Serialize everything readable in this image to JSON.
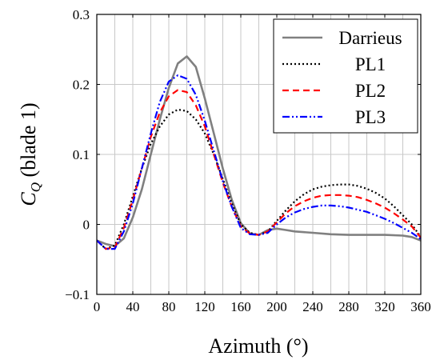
{
  "chart_data": {
    "type": "line",
    "xlabel": "Azimuth (°)",
    "ylabel_symbol": "C",
    "ylabel_subscript": "Q",
    "ylabel_suffix": " (blade 1)",
    "xlim": [
      0,
      360
    ],
    "ylim": [
      -0.1,
      0.3
    ],
    "x_ticks": [
      "0",
      "40",
      "80",
      "120",
      "160",
      "200",
      "240",
      "280",
      "320",
      "360"
    ],
    "x_tick_values": [
      0,
      40,
      80,
      120,
      160,
      200,
      240,
      280,
      320,
      360
    ],
    "x_minor_ticks": [
      20,
      60,
      100,
      140,
      180,
      220,
      260,
      300,
      340
    ],
    "y_ticks": [
      "−0.1",
      "0",
      "0.1",
      "0.2",
      "0.3"
    ],
    "y_tick_values": [
      -0.1,
      0,
      0.1,
      0.2,
      0.3
    ],
    "grid": true,
    "legend_position": "top-right",
    "series": [
      {
        "name": "Darrieus",
        "color": "#808080",
        "style": "solid",
        "x": [
          0,
          10,
          20,
          30,
          40,
          50,
          60,
          70,
          80,
          90,
          100,
          110,
          120,
          130,
          140,
          150,
          160,
          170,
          180,
          190,
          200,
          210,
          220,
          240,
          260,
          280,
          300,
          320,
          340,
          350,
          360
        ],
        "y": [
          -0.023,
          -0.028,
          -0.031,
          -0.02,
          0.01,
          0.05,
          0.1,
          0.15,
          0.195,
          0.23,
          0.24,
          0.225,
          0.18,
          0.13,
          0.08,
          0.035,
          0.002,
          -0.013,
          -0.015,
          -0.008,
          -0.006,
          -0.008,
          -0.01,
          -0.012,
          -0.014,
          -0.015,
          -0.015,
          -0.015,
          -0.016,
          -0.018,
          -0.023
        ]
      },
      {
        "name": "PL1",
        "color": "#000000",
        "style": "dotted",
        "x": [
          0,
          10,
          20,
          30,
          40,
          50,
          60,
          70,
          80,
          90,
          100,
          110,
          120,
          130,
          140,
          150,
          160,
          170,
          180,
          190,
          200,
          210,
          220,
          230,
          240,
          250,
          260,
          270,
          280,
          290,
          300,
          310,
          320,
          330,
          340,
          350,
          360
        ],
        "y": [
          -0.023,
          -0.035,
          -0.03,
          0.0,
          0.04,
          0.08,
          0.115,
          0.14,
          0.157,
          0.164,
          0.162,
          0.15,
          0.13,
          0.1,
          0.065,
          0.03,
          0.0,
          -0.012,
          -0.015,
          -0.01,
          0.005,
          0.02,
          0.033,
          0.043,
          0.05,
          0.054,
          0.056,
          0.057,
          0.057,
          0.055,
          0.051,
          0.045,
          0.037,
          0.026,
          0.013,
          0.0,
          -0.018
        ]
      },
      {
        "name": "PL2",
        "color": "#ff0000",
        "style": "dashed",
        "x": [
          0,
          10,
          20,
          30,
          40,
          50,
          60,
          70,
          80,
          90,
          100,
          110,
          120,
          130,
          140,
          150,
          160,
          170,
          180,
          190,
          200,
          210,
          220,
          230,
          240,
          250,
          260,
          270,
          280,
          290,
          300,
          310,
          320,
          330,
          340,
          350,
          360
        ],
        "y": [
          -0.023,
          -0.035,
          -0.033,
          -0.005,
          0.035,
          0.08,
          0.125,
          0.16,
          0.183,
          0.192,
          0.189,
          0.17,
          0.14,
          0.1,
          0.06,
          0.025,
          -0.003,
          -0.013,
          -0.015,
          -0.01,
          0.003,
          0.016,
          0.026,
          0.033,
          0.038,
          0.041,
          0.042,
          0.042,
          0.041,
          0.039,
          0.035,
          0.03,
          0.024,
          0.016,
          0.007,
          -0.003,
          -0.019
        ]
      },
      {
        "name": "PL3",
        "color": "#0000ff",
        "style": "dashdotdot",
        "x": [
          0,
          10,
          20,
          30,
          40,
          50,
          60,
          70,
          80,
          90,
          100,
          110,
          120,
          130,
          140,
          150,
          160,
          170,
          180,
          190,
          200,
          210,
          220,
          230,
          240,
          250,
          260,
          270,
          280,
          290,
          300,
          310,
          320,
          330,
          340,
          350,
          360
        ],
        "y": [
          -0.023,
          -0.035,
          -0.035,
          -0.01,
          0.03,
          0.08,
          0.13,
          0.175,
          0.204,
          0.213,
          0.208,
          0.185,
          0.148,
          0.105,
          0.062,
          0.025,
          -0.005,
          -0.014,
          -0.015,
          -0.012,
          0.0,
          0.01,
          0.017,
          0.022,
          0.025,
          0.027,
          0.027,
          0.026,
          0.024,
          0.021,
          0.018,
          0.013,
          0.008,
          0.002,
          -0.005,
          -0.012,
          -0.021
        ]
      }
    ]
  }
}
